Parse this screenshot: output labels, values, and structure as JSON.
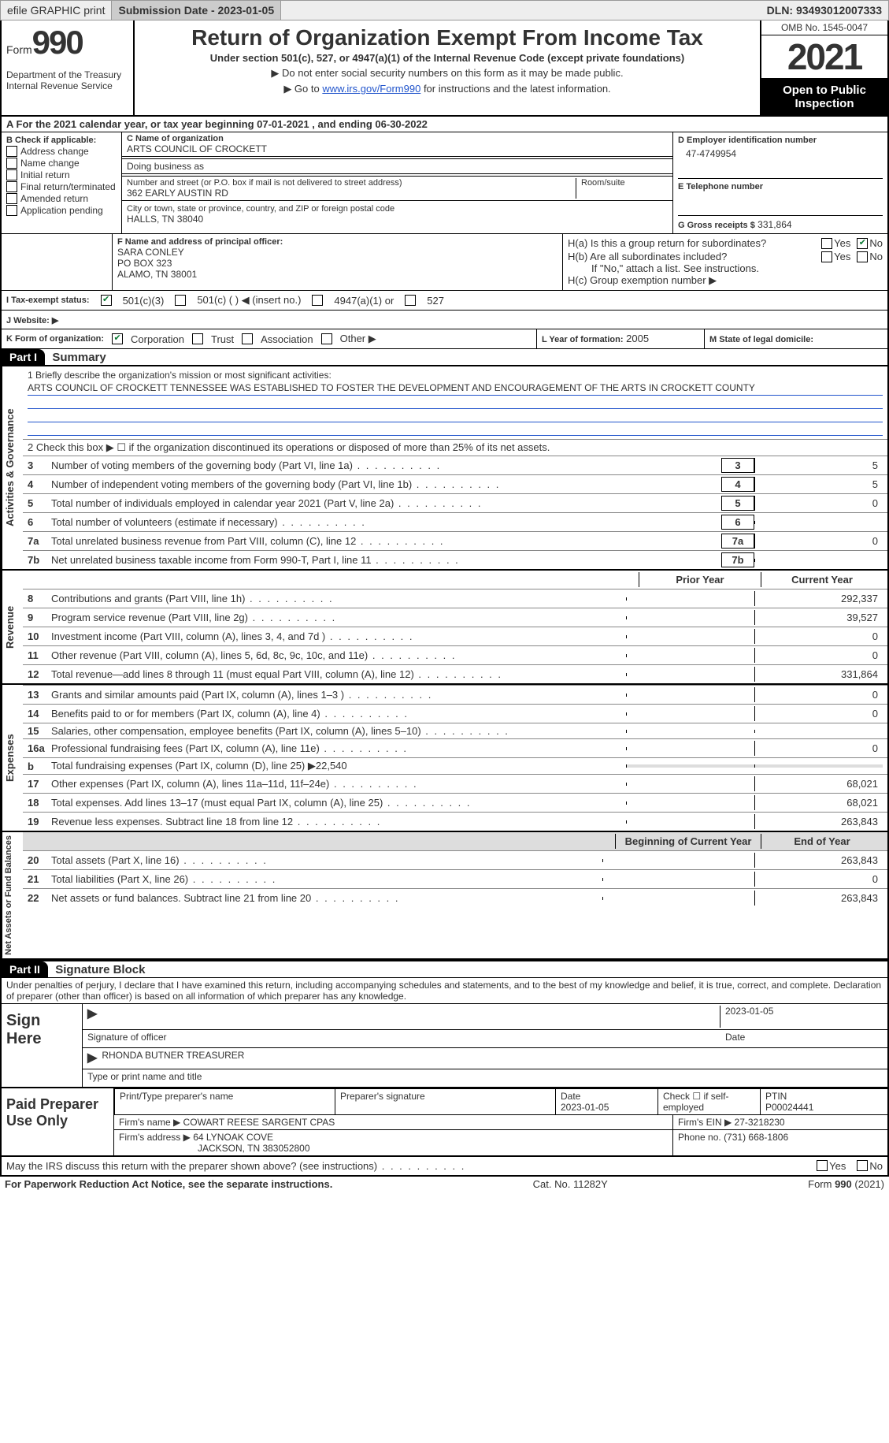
{
  "topbar": {
    "efile": "efile GRAPHIC print",
    "submission_label": "Submission Date - 2023-01-05",
    "dln_label": "DLN: 93493012007333"
  },
  "header": {
    "form_word": "Form",
    "form_num": "990",
    "dept": "Department of the Treasury Internal Revenue Service",
    "title": "Return of Organization Exempt From Income Tax",
    "subtitle": "Under section 501(c), 527, or 4947(a)(1) of the Internal Revenue Code (except private foundations)",
    "note1": "▶ Do not enter social security numbers on this form as it may be made public.",
    "note2_prefix": "▶ Go to ",
    "note2_link": "www.irs.gov/Form990",
    "note2_suffix": " for instructions and the latest information.",
    "omb": "OMB No. 1545-0047",
    "year": "2021",
    "inspect": "Open to Public Inspection"
  },
  "period": {
    "text": "A For the 2021 calendar year, or tax year beginning 07-01-2021    , and ending 06-30-2022"
  },
  "sectionB": {
    "label": "B Check if applicable:",
    "items": [
      "Address change",
      "Name change",
      "Initial return",
      "Final return/terminated",
      "Amended return",
      "Application pending"
    ]
  },
  "sectionC": {
    "name_label": "C Name of organization",
    "name": "ARTS COUNCIL OF CROCKETT",
    "dba_label": "Doing business as",
    "street_label": "Number and street (or P.O. box if mail is not delivered to street address)",
    "room_label": "Room/suite",
    "street": "362 EARLY AUSTIN RD",
    "city_label": "City or town, state or province, country, and ZIP or foreign postal code",
    "city": "HALLS, TN  38040"
  },
  "sectionD": {
    "label": "D Employer identification number",
    "value": "47-4749954"
  },
  "sectionE": {
    "label": "E Telephone number",
    "value": ""
  },
  "sectionG": {
    "label": "G Gross receipts $",
    "value": "331,864"
  },
  "sectionF": {
    "label": "F  Name and address of principal officer:",
    "name": "SARA CONLEY",
    "line2": "PO BOX 323",
    "line3": "ALAMO, TN  38001"
  },
  "sectionH": {
    "ha": "H(a)  Is this a group return for subordinates?",
    "hb": "H(b)  Are all subordinates included?",
    "hb_note": "If \"No,\" attach a list. See instructions.",
    "hc": "H(c)  Group exemption number ▶",
    "yes": "Yes",
    "no": "No"
  },
  "taxexempt": {
    "label": "I  Tax-exempt status:",
    "c3": "501(c)(3)",
    "c": "501(c) (  ) ◀ (insert no.)",
    "a1": "4947(a)(1) or",
    "s527": "527"
  },
  "website": {
    "label": "J  Website: ▶"
  },
  "formorg": {
    "label": "K Form of organization:",
    "corp": "Corporation",
    "trust": "Trust",
    "assoc": "Association",
    "other": "Other ▶"
  },
  "yearform": {
    "label": "L Year of formation:",
    "value": "2005"
  },
  "domicile": {
    "label": "M State of legal domicile:"
  },
  "part1": {
    "tab": "Part I",
    "title": "Summary"
  },
  "mission": {
    "label": "1  Briefly describe the organization's mission or most significant activities:",
    "text": "ARTS COUNCIL OF CROCKETT TENNESSEE WAS ESTABLISHED TO FOSTER THE DEVELOPMENT AND ENCOURAGEMENT OF THE ARTS IN CROCKETT COUNTY"
  },
  "line2": "2    Check this box ▶ ☐  if the organization discontinued its operations or disposed of more than 25% of its net assets.",
  "governance": {
    "vert": "Activities & Governance",
    "rows": [
      {
        "n": "3",
        "label": "Number of voting members of the governing body (Part VI, line 1a)",
        "box": "3",
        "val": "5"
      },
      {
        "n": "4",
        "label": "Number of independent voting members of the governing body (Part VI, line 1b)",
        "box": "4",
        "val": "5"
      },
      {
        "n": "5",
        "label": "Total number of individuals employed in calendar year 2021 (Part V, line 2a)",
        "box": "5",
        "val": "0"
      },
      {
        "n": "6",
        "label": "Total number of volunteers (estimate if necessary)",
        "box": "6",
        "val": ""
      },
      {
        "n": "7a",
        "label": "Total unrelated business revenue from Part VIII, column (C), line 12",
        "box": "7a",
        "val": "0"
      },
      {
        "n": "7b",
        "label": "Net unrelated business taxable income from Form 990-T, Part I, line 11",
        "box": "7b",
        "val": ""
      }
    ]
  },
  "revHdr": {
    "prior": "Prior Year",
    "curr": "Current Year"
  },
  "revenue": {
    "vert": "Revenue",
    "rows": [
      {
        "n": "8",
        "label": "Contributions and grants (Part VIII, line 1h)",
        "prior": "",
        "curr": "292,337"
      },
      {
        "n": "9",
        "label": "Program service revenue (Part VIII, line 2g)",
        "prior": "",
        "curr": "39,527"
      },
      {
        "n": "10",
        "label": "Investment income (Part VIII, column (A), lines 3, 4, and 7d )",
        "prior": "",
        "curr": "0"
      },
      {
        "n": "11",
        "label": "Other revenue (Part VIII, column (A), lines 5, 6d, 8c, 9c, 10c, and 11e)",
        "prior": "",
        "curr": "0"
      },
      {
        "n": "12",
        "label": "Total revenue—add lines 8 through 11 (must equal Part VIII, column (A), line 12)",
        "prior": "",
        "curr": "331,864"
      }
    ]
  },
  "expenses": {
    "vert": "Expenses",
    "rows": [
      {
        "n": "13",
        "label": "Grants and similar amounts paid (Part IX, column (A), lines 1–3 )",
        "prior": "",
        "curr": "0"
      },
      {
        "n": "14",
        "label": "Benefits paid to or for members (Part IX, column (A), line 4)",
        "prior": "",
        "curr": "0"
      },
      {
        "n": "15",
        "label": "Salaries, other compensation, employee benefits (Part IX, column (A), lines 5–10)",
        "prior": "",
        "curr": ""
      },
      {
        "n": "16a",
        "label": "Professional fundraising fees (Part IX, column (A), line 11e)",
        "prior": "",
        "curr": "0"
      },
      {
        "n": "b",
        "label": "Total fundraising expenses (Part IX, column (D), line 25) ▶22,540",
        "shaded": true
      },
      {
        "n": "17",
        "label": "Other expenses (Part IX, column (A), lines 11a–11d, 11f–24e)",
        "prior": "",
        "curr": "68,021"
      },
      {
        "n": "18",
        "label": "Total expenses. Add lines 13–17 (must equal Part IX, column (A), line 25)",
        "prior": "",
        "curr": "68,021"
      },
      {
        "n": "19",
        "label": "Revenue less expenses. Subtract line 18 from line 12",
        "prior": "",
        "curr": "263,843"
      }
    ]
  },
  "netHdr": {
    "prior": "Beginning of Current Year",
    "curr": "End of Year"
  },
  "netassets": {
    "vert": "Net Assets or Fund Balances",
    "rows": [
      {
        "n": "20",
        "label": "Total assets (Part X, line 16)",
        "prior": "",
        "curr": "263,843"
      },
      {
        "n": "21",
        "label": "Total liabilities (Part X, line 26)",
        "prior": "",
        "curr": "0"
      },
      {
        "n": "22",
        "label": "Net assets or fund balances. Subtract line 21 from line 20",
        "prior": "",
        "curr": "263,843"
      }
    ]
  },
  "part2": {
    "tab": "Part II",
    "title": "Signature Block"
  },
  "penalties": "Under penalties of perjury, I declare that I have examined this return, including accompanying schedules and statements, and to the best of my knowledge and belief, it is true, correct, and complete. Declaration of preparer (other than officer) is based on all information of which preparer has any knowledge.",
  "sign": {
    "left": "Sign Here",
    "sig_label": "Signature of officer",
    "date": "2023-01-05",
    "date_label": "Date",
    "name": "RHONDA BUTNER  TREASURER",
    "name_label": "Type or print name and title"
  },
  "prep": {
    "left": "Paid Preparer Use Only",
    "h1": "Print/Type preparer's name",
    "h2": "Preparer's signature",
    "h3_l": "Date",
    "h3": "2023-01-05",
    "h4_l": "Check ☐ if self-employed",
    "h5_l": "PTIN",
    "h5": "P00024441",
    "firm_l": "Firm's name    ▶",
    "firm": "COWART REESE SARGENT CPAS",
    "ein_l": "Firm's EIN ▶",
    "ein": "27-3218230",
    "addr_l": "Firm's address ▶",
    "addr1": "64 LYNOAK COVE",
    "addr2": "JACKSON, TN  383052800",
    "phone_l": "Phone no.",
    "phone": "(731) 668-1806"
  },
  "discuss": {
    "q": "May the IRS discuss this return with the preparer shown above? (see instructions)",
    "yes": "Yes",
    "no": "No"
  },
  "footer": {
    "left": "For Paperwork Reduction Act Notice, see the separate instructions.",
    "mid": "Cat. No. 11282Y",
    "right": "Form 990 (2021)"
  },
  "colors": {
    "link": "#2255cc",
    "check_green": "#0a7a33"
  }
}
